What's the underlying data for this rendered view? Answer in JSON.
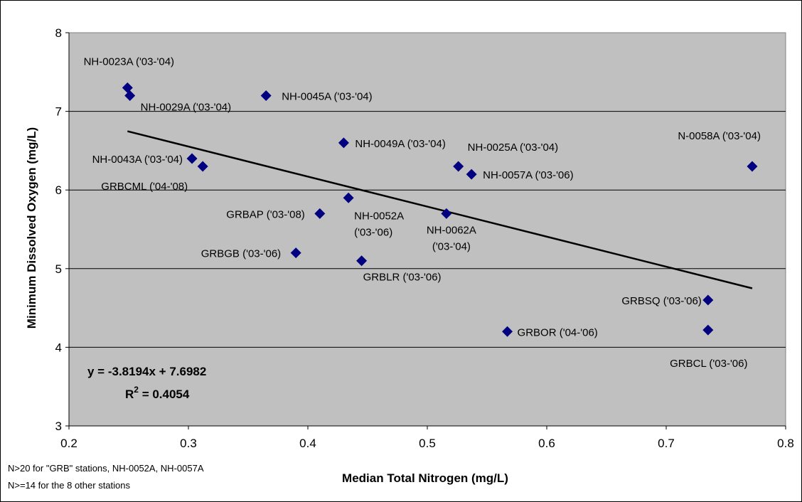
{
  "chart_data": {
    "type": "scatter",
    "title": "",
    "xlabel": "Median Total Nitrogen (mg/L)",
    "ylabel": "Minimum Dissolved Oxygen (mg/L)",
    "xlim": [
      0.2,
      0.8
    ],
    "ylim": [
      3,
      8
    ],
    "x_ticks": [
      "0.2",
      "0.3",
      "0.4",
      "0.5",
      "0.6",
      "0.7",
      "0.8"
    ],
    "y_ticks": [
      "3",
      "4",
      "5",
      "6",
      "7",
      "8"
    ],
    "grid": "horizontal",
    "plot_background": "#c0c0c0",
    "marker_color": "#000080",
    "points": [
      {
        "label": "NH-0023A ('03-'04)",
        "x": 0.249,
        "y": 7.3
      },
      {
        "label": "NH-0029A ('03-'04)",
        "x": 0.251,
        "y": 7.2
      },
      {
        "label": "NH-0045A ('03-'04)",
        "x": 0.365,
        "y": 7.2
      },
      {
        "label": "NH-0049A ('03-'04)",
        "x": 0.43,
        "y": 6.6
      },
      {
        "label": "NH-0043A ('03-'04)",
        "x": 0.303,
        "y": 6.4
      },
      {
        "label": "GRBCML ('04-'08)",
        "x": 0.312,
        "y": 6.3
      },
      {
        "label": "NH-0025A ('03-'04)",
        "x": 0.526,
        "y": 6.3
      },
      {
        "label": "NH-0057A ('03-'06)",
        "x": 0.537,
        "y": 6.2
      },
      {
        "label": "N-0058A ('03-'04)",
        "x": 0.772,
        "y": 6.3
      },
      {
        "label": "NH-0052A ('03-'06)",
        "x": 0.434,
        "y": 5.9
      },
      {
        "label": "GRBAP ('03-'08)",
        "x": 0.41,
        "y": 5.7
      },
      {
        "label": "NH-0062A ('03-'04)",
        "x": 0.516,
        "y": 5.7
      },
      {
        "label": "GRBGB ('03-'06)",
        "x": 0.39,
        "y": 5.2
      },
      {
        "label": "GRBLR ('03-'06)",
        "x": 0.445,
        "y": 5.1
      },
      {
        "label": "GRBSQ ('03-'06)",
        "x": 0.735,
        "y": 4.6
      },
      {
        "label": "GRBOR ('04-'06)",
        "x": 0.567,
        "y": 4.2
      },
      {
        "label": "GRBCL ('03-'06)",
        "x": 0.735,
        "y": 4.22
      }
    ],
    "trendline": {
      "slope": -3.8194,
      "intercept": 7.6982,
      "x_range": [
        0.249,
        0.772
      ],
      "equation": "y = -3.8194x + 7.6982",
      "r2_label": "R",
      "r2_sup": "2",
      "r2_value": " = 0.4054"
    },
    "notes": [
      "N>20 for \"GRB\" stations, NH-0052A, NH-0057A",
      "N>=14 for the 8 other stations"
    ]
  }
}
